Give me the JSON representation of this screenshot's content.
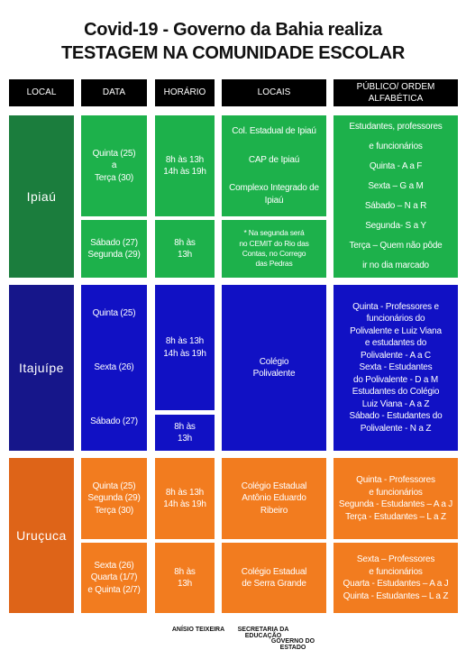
{
  "title": [
    "Covid-19 - Governo da Bahia realiza",
    "TESTAGEM NA COMUNIDADE ESCOLAR"
  ],
  "header": [
    "LOCAL",
    "DATA",
    "HORÁRIO",
    "LOCAIS",
    "PÚBLICO/ ORDEM ALFABÉTICA"
  ],
  "sections": [
    {
      "local": "Ipiaú",
      "data": [
        [
          "Quinta (25)",
          "a",
          "Terça (30)"
        ],
        [
          "Sábado (27)",
          "Segunda (29)"
        ]
      ],
      "horario": [
        [
          "8h às 13h",
          "14h às 19h"
        ],
        [
          "8h às",
          "13h"
        ]
      ],
      "locais": [
        [
          "Col. Estadual de Ipiaú",
          "CAP de Ipiaú",
          "Complexo Integrado de Ipiaú"
        ],
        [
          "* Na segunda será",
          "no CEMIT do Rio das",
          "Contas, no Corrego",
          "das Pedras"
        ]
      ],
      "publico": [
        [
          "Estudantes, professores",
          "e funcionários",
          "Quinta - A a F",
          "Sexta – G a M",
          "Sábado – N a R",
          "Segunda- S a Y",
          "Terça – Quem não pôde",
          "ir no dia marcado"
        ]
      ]
    },
    {
      "local": "Itajuípe",
      "data": [
        [
          "Quinta (25)",
          "Sexta (26)",
          "Sábado (27)"
        ]
      ],
      "horario": [
        [
          "8h às 13h",
          "14h às 19h"
        ],
        [
          "8h às",
          "13h"
        ]
      ],
      "locais": [
        [
          "Colégio",
          "Polivalente"
        ]
      ],
      "publico": [
        [
          "Quinta - Professores e",
          "funcionários do",
          "Polivalente e Luiz Viana",
          "e estudantes do",
          "Polivalente - A a C",
          "Sexta - Estudantes",
          "do Polivalente - D a M",
          "Estudantes do Colégio",
          "Luiz Viana - A a Z",
          "Sábado - Estudantes do",
          "Polivalente - N a Z"
        ]
      ]
    },
    {
      "local": "Uruçuca",
      "data": [
        [
          "Quinta (25)",
          "Segunda (29)",
          "Terça (30)"
        ],
        [
          "Sexta (26)",
          "Quarta (1/7)",
          "e Quinta (2/7)"
        ]
      ],
      "horario": [
        [
          "8h às 13h",
          "14h às 19h"
        ],
        [
          "8h às",
          "13h"
        ]
      ],
      "locais": [
        [
          "Colégio Estadual",
          "Antônio Eduardo",
          "Ribeiro"
        ],
        [
          "Colégio Estadual",
          "de Serra Grande"
        ]
      ],
      "publico": [
        [
          "Quinta - Professores",
          "e funcionários",
          "Segunda - Estudantes – A a J",
          "Terça - Estudantes – L a Z"
        ],
        [
          "Sexta – Professores",
          "e funcionários",
          "Quarta - Estudantes – A a J",
          "Quinta - Estudantes – L a Z"
        ]
      ]
    }
  ],
  "footer": [
    "ANÍSIO TEIXEIRA",
    "SECRETARIA DA EDUCAÇÃO",
    "GOVERNO DO ESTADO"
  ]
}
